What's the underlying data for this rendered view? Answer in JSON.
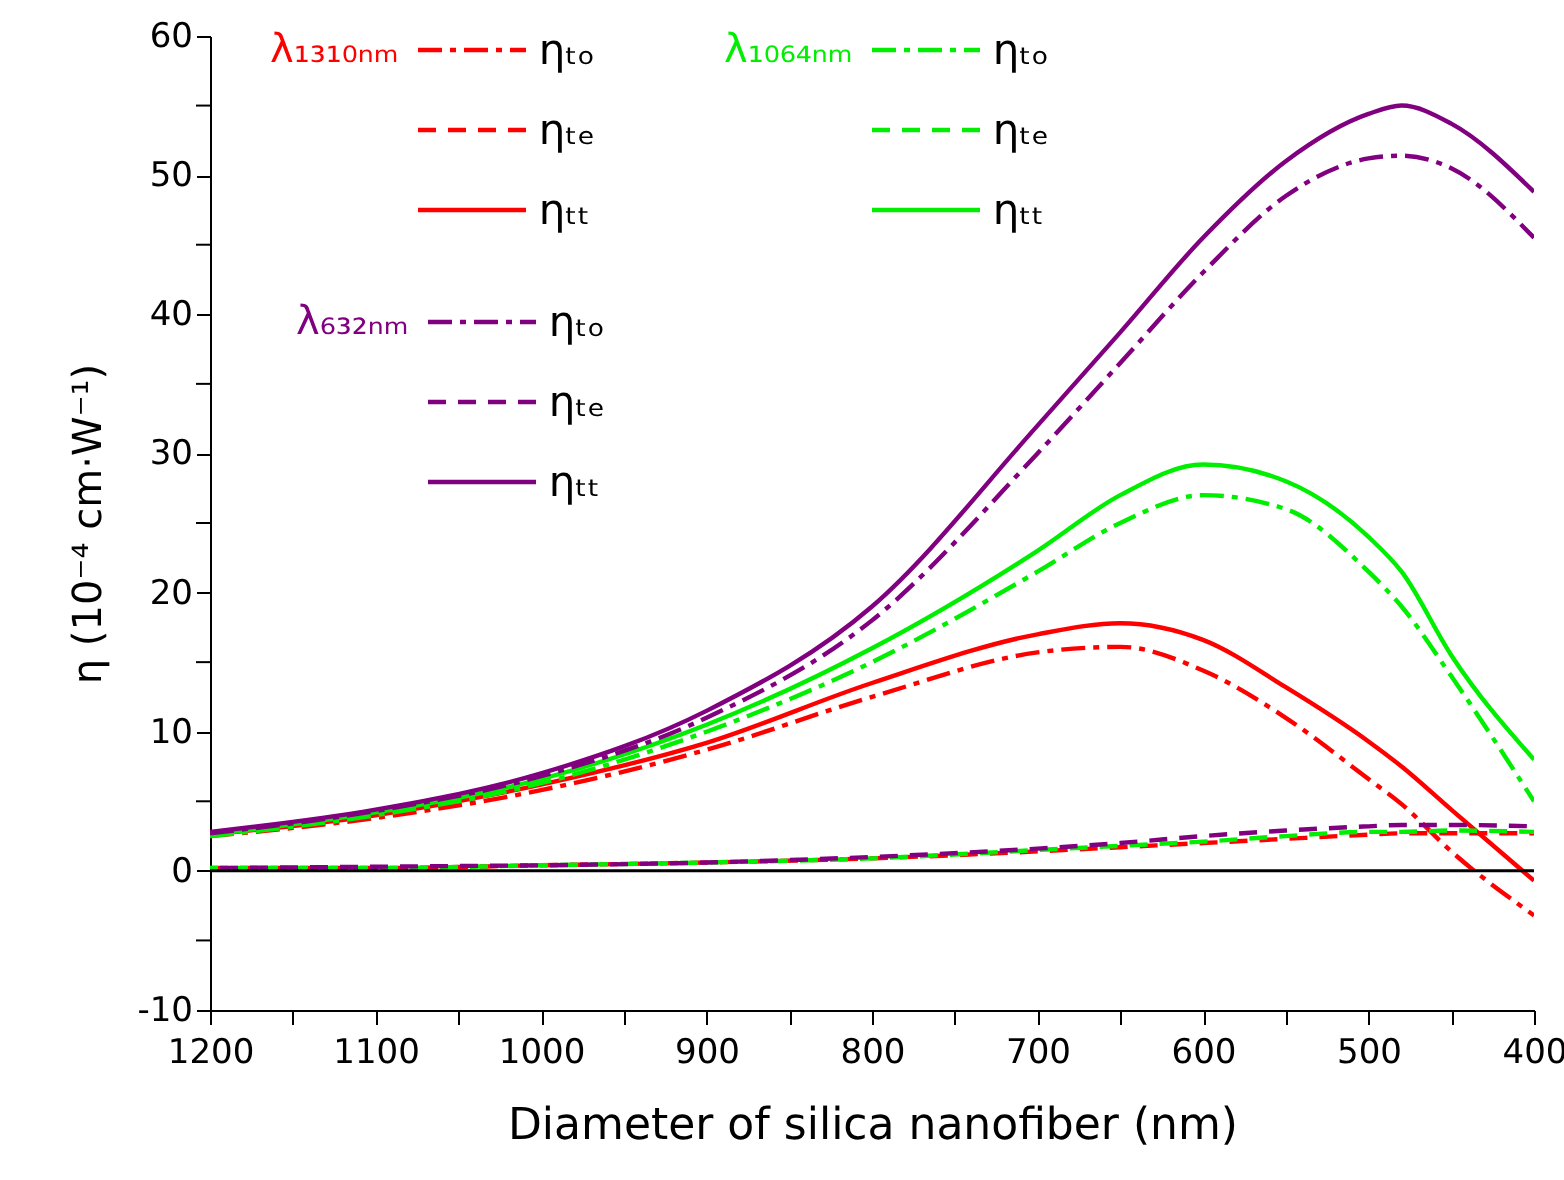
{
  "chart_data": {
    "type": "line",
    "xlabel": "Diameter of silica nanofiber (nm)",
    "ylabel": "η (10⁻⁴ cm·W⁻¹)",
    "x": [
      1200,
      1100,
      1000,
      900,
      800,
      700,
      650,
      600,
      550,
      500,
      480,
      450,
      400
    ],
    "xlim": [
      1200,
      400
    ],
    "xticks": [
      1200,
      {
        "value": 1150,
        "label": null
      },
      1100,
      {
        "value": 1050,
        "label": null
      },
      1000,
      {
        "value": 950,
        "label": null
      },
      900,
      {
        "value": 850,
        "label": null
      },
      800,
      {
        "value": 750,
        "label": null
      },
      700,
      {
        "value": 650,
        "label": null
      },
      600,
      {
        "value": 550,
        "label": null
      },
      500,
      {
        "value": 450,
        "label": null
      },
      400
    ],
    "ylim": [
      -10,
      60
    ],
    "yticks": [
      -10,
      {
        "value": -5,
        "label": null
      },
      0,
      {
        "value": 5,
        "label": null
      },
      10,
      {
        "value": 15,
        "label": null
      },
      20,
      {
        "value": 25,
        "label": null
      },
      30,
      {
        "value": 35,
        "label": null
      },
      40,
      {
        "value": 45,
        "label": null
      },
      50,
      {
        "value": 55,
        "label": null
      },
      60
    ],
    "grid": false,
    "legend": "top left",
    "annotations": [
      "λ₁₃₁₀ₙₘ",
      "λ₁₀₆₄ₙₘ",
      "λ₆₃₂ₙₘ"
    ],
    "ref_lines": [
      {
        "axis": "y",
        "value": 0,
        "color": "#000000"
      }
    ],
    "series": [
      {
        "name": "ηₜₒ",
        "color": "#ff0000",
        "line_style": "dashdot",
        "values": [
          2.5,
          3.8,
          5.8,
          8.7,
          12.5,
          15.7,
          16.1,
          14.4,
          11,
          6.6,
          4.8,
          1.4,
          -3.2
        ]
      },
      {
        "name": "ηₜₑ",
        "color": "#ff0000",
        "line_style": "dashed",
        "values": [
          0.2,
          0.2,
          0.4,
          0.6,
          0.9,
          1.4,
          1.7,
          2.0,
          2.3,
          2.6,
          2.7,
          2.7,
          2.7
        ]
      },
      {
        "name": "ηₜₜ",
        "color": "#ff0000",
        "line_style": "solid",
        "values": [
          2.6,
          4,
          6.2,
          9.2,
          13.5,
          17,
          17.8,
          16.6,
          13.2,
          9.3,
          7.5,
          4.4,
          -0.7
        ]
      },
      {
        "name": "ηₜₒ",
        "color": "#00ee00",
        "line_style": "dashdot",
        "values": [
          2.5,
          4,
          6.3,
          10,
          15,
          21.5,
          25,
          27,
          26,
          21.5,
          19,
          14,
          5
        ]
      },
      {
        "name": "ηₜₑ",
        "color": "#00ee00",
        "line_style": "dashed",
        "values": [
          0.2,
          0.2,
          0.4,
          0.6,
          0.9,
          1.5,
          1.8,
          2.1,
          2.5,
          2.8,
          2.8,
          2.9,
          2.8
        ]
      },
      {
        "name": "ηₜₜ",
        "color": "#00ee00",
        "line_style": "solid",
        "values": [
          2.6,
          4.2,
          6.6,
          10.5,
          16,
          23,
          27,
          29.2,
          28,
          24,
          21.5,
          15.5,
          8
        ]
      },
      {
        "name": "ηₜₒ",
        "color": "#800080",
        "line_style": "dashdot",
        "values": [
          2.7,
          4.3,
          6.8,
          11,
          18,
          30,
          36.5,
          43,
          48.5,
          51.2,
          51.4,
          50.5,
          45.5
        ]
      },
      {
        "name": "ηₜₑ",
        "color": "#800080",
        "line_style": "dashed",
        "values": [
          0.2,
          0.3,
          0.4,
          0.6,
          1.0,
          1.6,
          2.0,
          2.5,
          2.9,
          3.2,
          3.3,
          3.3,
          3.2
        ]
      },
      {
        "name": "ηₜₜ",
        "color": "#800080",
        "line_style": "solid",
        "values": [
          2.8,
          4.4,
          7,
          11.5,
          19,
          32,
          38.7,
          45.5,
          51,
          54.4,
          55,
          53.7,
          48.8
        ]
      }
    ]
  }
}
